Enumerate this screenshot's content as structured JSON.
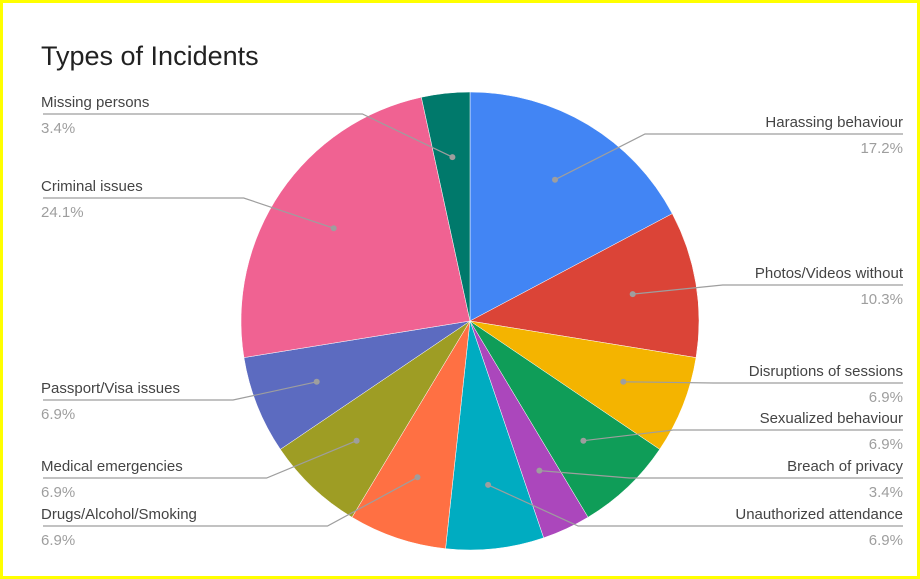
{
  "chart_data": {
    "type": "pie",
    "title": "Types of Incidents",
    "slices": [
      {
        "label": "Harassing behaviour",
        "value": 17.2,
        "display": "17.2%",
        "color": "#4285f4"
      },
      {
        "label": "Photos/Videos without",
        "value": 10.3,
        "display": "10.3%",
        "color": "#db4437"
      },
      {
        "label": "Disruptions of sessions",
        "value": 6.9,
        "display": "6.9%",
        "color": "#f4b400"
      },
      {
        "label": "Sexualized behaviour",
        "value": 6.9,
        "display": "6.9%",
        "color": "#0f9d58"
      },
      {
        "label": "Breach of privacy",
        "value": 3.4,
        "display": "3.4%",
        "color": "#ab47bc"
      },
      {
        "label": "Unauthorized attendance",
        "value": 6.9,
        "display": "6.9%",
        "color": "#00acc1"
      },
      {
        "label": "Drugs/Alcohol/Smoking",
        "value": 6.9,
        "display": "6.9%",
        "color": "#ff7043"
      },
      {
        "label": "Medical emergencies",
        "value": 6.9,
        "display": "6.9%",
        "color": "#9e9d24"
      },
      {
        "label": "Passport/Visa issues",
        "value": 6.9,
        "display": "6.9%",
        "color": "#5c6bc0"
      },
      {
        "label": "Criminal issues",
        "value": 24.1,
        "display": "24.1%",
        "color": "#f06292"
      },
      {
        "label": "Missing persons",
        "value": 3.4,
        "display": "3.4%",
        "color": "#00796b"
      }
    ],
    "legend": "none",
    "leader_color": "#9e9e9e"
  }
}
